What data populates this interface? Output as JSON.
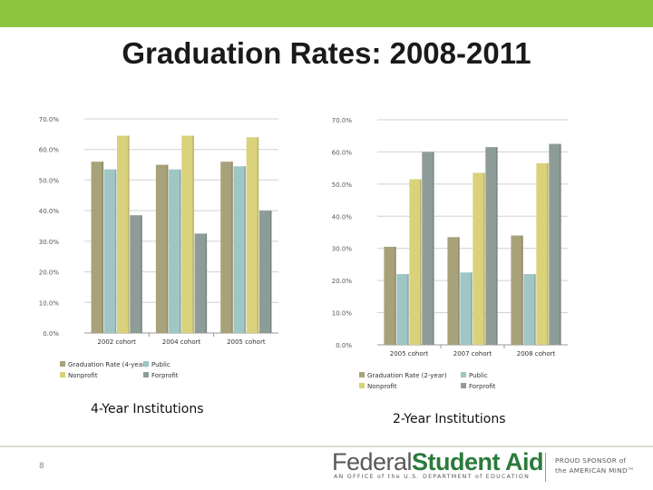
{
  "slide": {
    "title": "Graduation Rates: 2008-2011",
    "page_number": "8",
    "colors": {
      "top_bar": "#8dc63f",
      "footer_line": "#d8dfd2",
      "brand_green": "#2b7a3a"
    }
  },
  "footer": {
    "logo_word1": "Federal",
    "logo_word2": "Student Aid",
    "logo_subtitle": "AN OFFICE of the U.S. DEPARTMENT of EDUCATION",
    "sponsor_line1": "PROUD SPONSOR of",
    "sponsor_line2": "the AMERICAN MIND™"
  },
  "chart_data": [
    {
      "type": "bar",
      "caption": "4-Year Institutions",
      "categories": [
        "2002 cohort",
        "2004 cohort",
        "2005 cohort"
      ],
      "series": [
        {
          "name": "Graduation Rate (4-year)",
          "values": [
            56.0,
            55.0,
            56.0
          ],
          "color": "#a8a27a"
        },
        {
          "name": "Public",
          "values": [
            53.5,
            53.5,
            54.5
          ],
          "color": "#9fc5c5"
        },
        {
          "name": "Nonprofit",
          "values": [
            64.5,
            64.5,
            64.0
          ],
          "color": "#d9d27a"
        },
        {
          "name": "Forprofit",
          "values": [
            38.5,
            32.5,
            40.0
          ],
          "color": "#8e9c98"
        }
      ],
      "ylim": [
        0,
        70
      ],
      "yticks": [
        "0.0%",
        "10.0%",
        "20.0%",
        "30.0%",
        "40.0%",
        "50.0%",
        "60.0%",
        "70.0%"
      ],
      "grid": true,
      "legend_position": "bottom"
    },
    {
      "type": "bar",
      "caption": "2-Year Institutions",
      "categories": [
        "2005 cohort",
        "2007 cohort",
        "2008 cohort"
      ],
      "series": [
        {
          "name": "Graduation Rate (2-year)",
          "values": [
            30.5,
            33.5,
            34.0
          ],
          "color": "#a8a27a"
        },
        {
          "name": "Public",
          "values": [
            22.0,
            22.5,
            22.0
          ],
          "color": "#9fc5c5"
        },
        {
          "name": "Nonprofit",
          "values": [
            51.5,
            53.5,
            56.5
          ],
          "color": "#d9d27a"
        },
        {
          "name": "Forprofit",
          "values": [
            60.0,
            61.5,
            62.5
          ],
          "color": "#8e9c98"
        }
      ],
      "ylim": [
        0,
        70
      ],
      "yticks": [
        "0.0%",
        "10.0%",
        "20.0%",
        "30.0%",
        "40.0%",
        "50.0%",
        "60.0%",
        "70.0%"
      ],
      "grid": true,
      "legend_position": "bottom"
    }
  ]
}
